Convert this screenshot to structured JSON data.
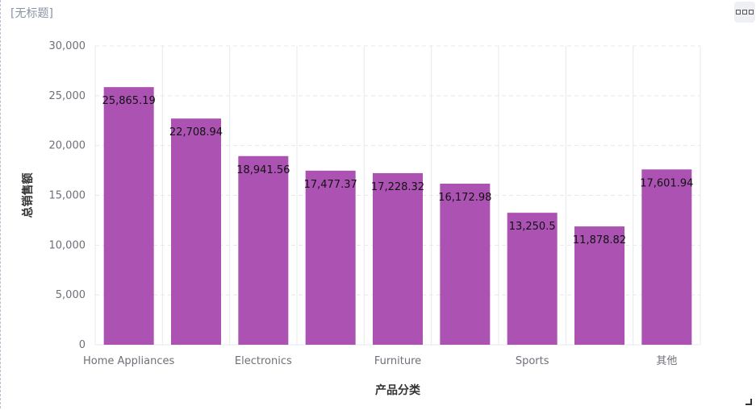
{
  "window": {
    "title": "[无标题]"
  },
  "colors": {
    "bar": "#ab52b3",
    "grid": "#e6e8ee",
    "axis": "#6e7079"
  },
  "chart_data": {
    "type": "bar",
    "title": "",
    "xlabel": "产品分类",
    "ylabel": "总销售额",
    "ylim": [
      0,
      30000
    ],
    "yticks": [
      "0",
      "5,000",
      "10,000",
      "15,000",
      "20,000",
      "25,000",
      "30,000"
    ],
    "categories": [
      "Home Appliances",
      "",
      "Electronics",
      "",
      "Furniture",
      "",
      "Sports",
      "",
      "其他"
    ],
    "values": [
      25865.19,
      22708.94,
      18941.56,
      17477.37,
      17228.32,
      16172.98,
      13250.5,
      11878.82,
      17601.94
    ],
    "value_labels": [
      "25,865.19",
      "22,708.94",
      "18,941.56",
      "17,477.37",
      "17,228.32",
      "16,172.98",
      "13,250.5",
      "11,878.82",
      "17,601.94"
    ],
    "grid": true
  }
}
